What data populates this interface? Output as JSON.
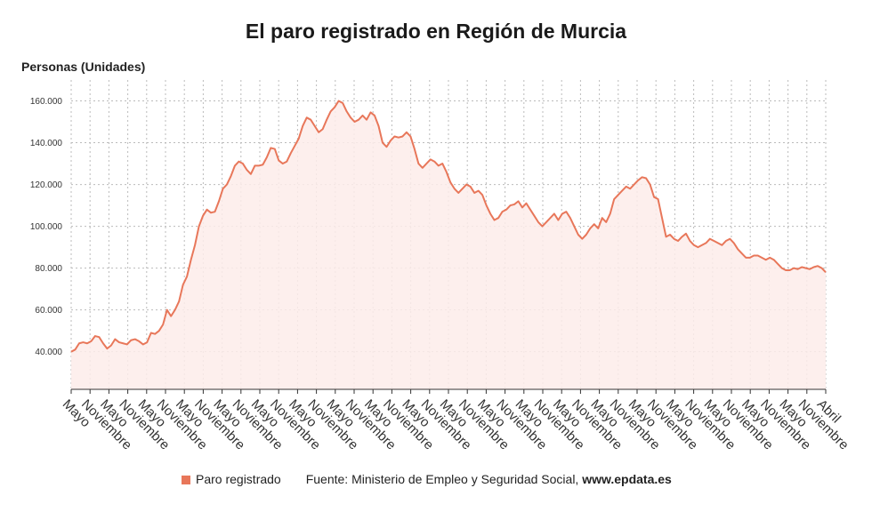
{
  "title": "El paro registrado en Región de Murcia",
  "y_axis_label": "Personas (Unidades)",
  "legend": {
    "series_label": "Paro registrado",
    "source_prefix": "Fuente: Ministerio de Empleo y Seguridad Social, ",
    "source_domain": "www.epdata.es"
  },
  "colors": {
    "line": "#e8775a",
    "fill": "#fdecea",
    "swatch": "#e8775a",
    "grid": "#bbbbbb",
    "axis": "#333333"
  },
  "chart_data": {
    "type": "area",
    "title": "El paro registrado en Región de Murcia",
    "ylabel": "Personas (Unidades)",
    "ylim": [
      22000,
      170000
    ],
    "yticks": [
      40000,
      60000,
      80000,
      100000,
      120000,
      140000,
      160000
    ],
    "ytick_labels": [
      "40.000",
      "60.000",
      "80.000",
      "100.000",
      "120.000",
      "140.000",
      "160.000"
    ],
    "grid": true,
    "legend_position": "bottom",
    "x_tick_labels": [
      "Mayo",
      "Noviembre",
      "Mayo",
      "Noviembre",
      "Mayo",
      "Noviembre",
      "Mayo",
      "Noviembre",
      "Mayo",
      "Noviembre",
      "Mayo",
      "Noviembre",
      "Mayo",
      "Noviembre",
      "Mayo",
      "Noviembre",
      "Mayo",
      "Noviembre",
      "Mayo",
      "Noviembre",
      "Mayo",
      "Noviembre",
      "Mayo",
      "Noviembre",
      "Mayo",
      "Noviembre",
      "Mayo",
      "Noviembre",
      "Mayo",
      "Noviembre",
      "Mayo",
      "Noviembre",
      "Mayo",
      "Noviembre",
      "Mayo",
      "Noviembre",
      "Mayo",
      "Noviembre",
      "Mayo",
      "Noviembre",
      "Abril"
    ],
    "series": [
      {
        "name": "Paro registrado",
        "values": [
          40000,
          41000,
          44000,
          44500,
          44000,
          45000,
          47500,
          47000,
          44000,
          41500,
          43000,
          46000,
          44500,
          44000,
          43500,
          45500,
          46000,
          45000,
          43500,
          44500,
          49000,
          48500,
          50000,
          53000,
          60000,
          57000,
          60000,
          64000,
          72000,
          76000,
          84000,
          91000,
          100000,
          105000,
          108000,
          106500,
          107000,
          112000,
          118000,
          120000,
          124000,
          129000,
          131000,
          130000,
          127000,
          125000,
          129000,
          129000,
          129500,
          133000,
          137500,
          137000,
          131500,
          130000,
          131000,
          135000,
          138500,
          142000,
          148000,
          152000,
          151000,
          148000,
          145000,
          146500,
          151000,
          155000,
          157000,
          160000,
          159000,
          155000,
          152000,
          150000,
          151000,
          153000,
          151000,
          154500,
          153000,
          148000,
          140000,
          138000,
          141000,
          143000,
          142500,
          143000,
          145000,
          143000,
          137000,
          130000,
          128000,
          130000,
          132000,
          131000,
          129000,
          130000,
          126000,
          121000,
          118000,
          116000,
          118000,
          120000,
          119000,
          116000,
          117000,
          115000,
          110000,
          106000,
          103000,
          104000,
          107000,
          108000,
          110000,
          110500,
          112000,
          109000,
          111000,
          108000,
          105000,
          102000,
          100000,
          102000,
          104000,
          106000,
          103000,
          106000,
          107000,
          104000,
          100000,
          96000,
          94000,
          96000,
          99000,
          101000,
          99000,
          104000,
          102000,
          106000,
          113000,
          115000,
          117000,
          119000,
          118000,
          120000,
          122000,
          123500,
          123000,
          120000,
          114000,
          113000,
          104000,
          95000,
          96000,
          94000,
          93000,
          95000,
          96500,
          93000,
          91000,
          90000,
          91000,
          92000,
          94000,
          93000,
          92000,
          91000,
          93000,
          94000,
          92000,
          89000,
          87000,
          85000,
          85000,
          86000,
          86000,
          85000,
          84000,
          85000,
          84000,
          82000,
          80000,
          79000,
          79000,
          80000,
          79500,
          80500,
          80000,
          79500,
          80500,
          81000,
          80000,
          78000
        ]
      }
    ]
  }
}
